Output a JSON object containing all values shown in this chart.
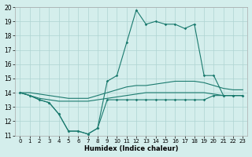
{
  "xlabel": "Humidex (Indice chaleur)",
  "bg_color": "#d4eeec",
  "grid_color": "#aed4d2",
  "line_color": "#1a7a6e",
  "xlim_min": -0.5,
  "xlim_max": 23.5,
  "ylim_min": 11,
  "ylim_max": 20,
  "xticks": [
    0,
    1,
    2,
    3,
    4,
    5,
    6,
    7,
    8,
    9,
    10,
    11,
    12,
    13,
    14,
    15,
    16,
    17,
    18,
    19,
    20,
    21,
    22,
    23
  ],
  "yticks": [
    11,
    12,
    13,
    14,
    15,
    16,
    17,
    18,
    19,
    20
  ],
  "line_bot": [
    14.0,
    13.8,
    13.5,
    13.3,
    12.5,
    11.3,
    11.3,
    11.1,
    11.5,
    13.5,
    13.5,
    13.5,
    13.5,
    13.5,
    13.5,
    13.5,
    13.5,
    13.5,
    13.5,
    13.5,
    13.8,
    13.8,
    13.8,
    13.8
  ],
  "line_low": [
    14.0,
    13.8,
    13.6,
    13.5,
    13.4,
    13.4,
    13.4,
    13.4,
    13.5,
    13.6,
    13.7,
    13.8,
    13.9,
    14.0,
    14.0,
    14.0,
    14.0,
    14.0,
    14.0,
    14.0,
    13.9,
    13.8,
    13.8,
    13.8
  ],
  "line_mid": [
    14.0,
    14.0,
    13.9,
    13.8,
    13.7,
    13.6,
    13.6,
    13.6,
    13.8,
    14.0,
    14.2,
    14.4,
    14.5,
    14.5,
    14.6,
    14.7,
    14.8,
    14.8,
    14.8,
    14.7,
    14.5,
    14.3,
    14.2,
    14.2
  ],
  "line_top": [
    14.0,
    13.8,
    13.5,
    13.3,
    12.5,
    11.3,
    11.3,
    11.1,
    11.5,
    14.8,
    15.2,
    17.5,
    19.8,
    18.8,
    19.0,
    18.8,
    18.8,
    18.5,
    18.8,
    15.2,
    15.2,
    13.8,
    13.8,
    13.8
  ]
}
